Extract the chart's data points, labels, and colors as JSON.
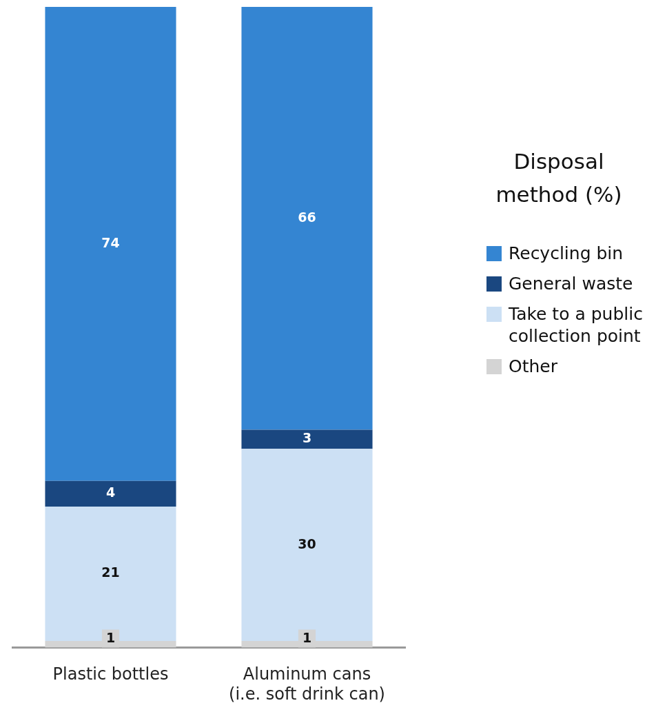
{
  "chart_data": {
    "type": "bar",
    "stacked": true,
    "categories": [
      "Plastic bottles",
      "Aluminum cans\n(i.e. soft drink can)"
    ],
    "legend_title": "Disposal method (%)",
    "legend": "right",
    "grid": false,
    "tick_labels": "x",
    "data_labels": true,
    "series": [
      {
        "name": "Other",
        "color": "#d4d4d4",
        "values": [
          1,
          1
        ]
      },
      {
        "name": "Take to a public collection point",
        "color": "#cce0f4",
        "values": [
          21,
          30
        ]
      },
      {
        "name": "General waste",
        "color": "#1a4780",
        "values": [
          4,
          3
        ]
      },
      {
        "name": "Recycling bin",
        "color": "#3485d2",
        "values": [
          74,
          66
        ]
      }
    ]
  }
}
